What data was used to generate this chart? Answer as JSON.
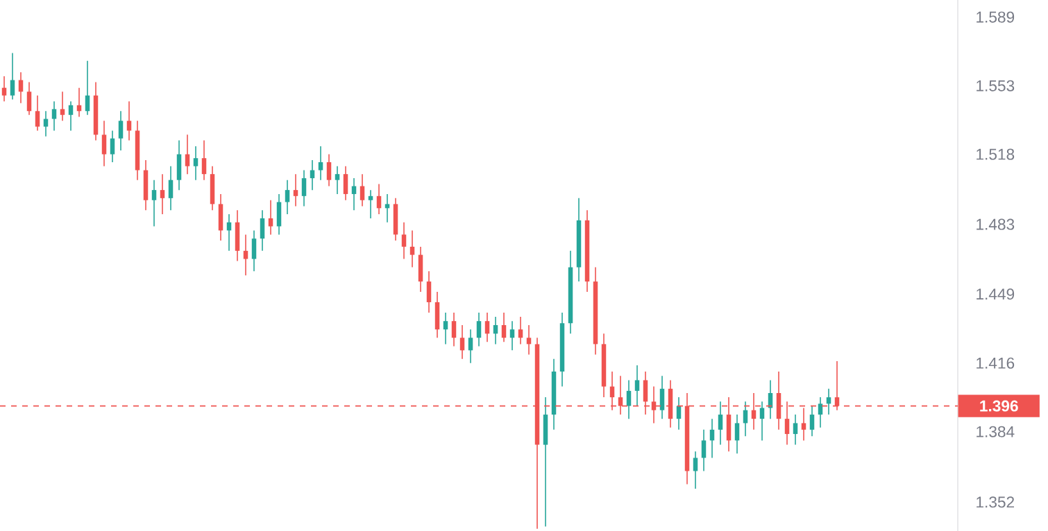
{
  "chart_data": {
    "type": "candlestick",
    "categories": [
      null,
      null,
      null,
      null,
      null,
      null,
      null,
      null,
      null,
      null,
      null,
      null,
      null,
      null,
      null,
      null,
      null,
      null,
      null,
      null,
      null,
      null,
      null,
      null,
      null,
      null,
      null,
      null,
      null,
      null,
      null,
      null,
      null,
      null,
      null,
      null,
      null,
      null,
      null,
      null,
      null,
      null,
      null,
      null,
      null,
      null,
      null,
      null,
      null,
      null,
      null,
      null,
      null,
      null,
      null,
      null,
      null,
      null,
      null,
      null,
      null,
      null,
      null,
      null,
      null,
      null,
      null,
      null,
      null,
      null,
      null,
      null,
      null,
      null,
      null,
      null,
      null,
      null,
      null,
      null,
      null,
      null,
      null,
      null,
      null,
      null,
      null,
      null,
      null,
      null,
      null,
      null,
      null,
      null,
      null,
      null,
      null,
      null,
      null,
      null,
      null,
      null,
      null,
      null,
      null,
      null,
      null,
      null,
      null,
      null,
      null,
      null,
      null,
      null,
      null
    ],
    "ohlc": [
      [
        1.552,
        1.558,
        1.545,
        1.548
      ],
      [
        1.548,
        1.57,
        1.546,
        1.556
      ],
      [
        1.556,
        1.56,
        1.544,
        1.55
      ],
      [
        1.55,
        1.555,
        1.538,
        1.54
      ],
      [
        1.54,
        1.548,
        1.53,
        1.532
      ],
      [
        1.532,
        1.54,
        1.527,
        1.536
      ],
      [
        1.536,
        1.545,
        1.53,
        1.541
      ],
      [
        1.541,
        1.55,
        1.535,
        1.538
      ],
      [
        1.538,
        1.545,
        1.53,
        1.543
      ],
      [
        1.543,
        1.552,
        1.537,
        1.54
      ],
      [
        1.54,
        1.566,
        1.538,
        1.548
      ],
      [
        1.548,
        1.555,
        1.525,
        1.528
      ],
      [
        1.528,
        1.535,
        1.512,
        1.518
      ],
      [
        1.518,
        1.53,
        1.514,
        1.526
      ],
      [
        1.526,
        1.54,
        1.52,
        1.535
      ],
      [
        1.535,
        1.545,
        1.525,
        1.53
      ],
      [
        1.53,
        1.535,
        1.505,
        1.51
      ],
      [
        1.51,
        1.515,
        1.49,
        1.495
      ],
      [
        1.495,
        1.505,
        1.482,
        1.5
      ],
      [
        1.5,
        1.508,
        1.488,
        1.496
      ],
      [
        1.496,
        1.512,
        1.49,
        1.505
      ],
      [
        1.505,
        1.525,
        1.5,
        1.518
      ],
      [
        1.518,
        1.528,
        1.508,
        1.512
      ],
      [
        1.512,
        1.522,
        1.505,
        1.516
      ],
      [
        1.516,
        1.525,
        1.505,
        1.508
      ],
      [
        1.508,
        1.512,
        1.49,
        1.493
      ],
      [
        1.493,
        1.498,
        1.475,
        1.48
      ],
      [
        1.48,
        1.488,
        1.47,
        1.484
      ],
      [
        1.484,
        1.49,
        1.465,
        1.47
      ],
      [
        1.47,
        1.478,
        1.458,
        1.466
      ],
      [
        1.466,
        1.48,
        1.46,
        1.476
      ],
      [
        1.476,
        1.49,
        1.47,
        1.486
      ],
      [
        1.486,
        1.495,
        1.478,
        1.482
      ],
      [
        1.482,
        1.498,
        1.478,
        1.494
      ],
      [
        1.494,
        1.505,
        1.488,
        1.5
      ],
      [
        1.5,
        1.508,
        1.492,
        1.497
      ],
      [
        1.497,
        1.51,
        1.492,
        1.506
      ],
      [
        1.506,
        1.515,
        1.5,
        1.51
      ],
      [
        1.51,
        1.522,
        1.505,
        1.514
      ],
      [
        1.514,
        1.518,
        1.502,
        1.505
      ],
      [
        1.505,
        1.512,
        1.498,
        1.508
      ],
      [
        1.508,
        1.512,
        1.495,
        1.498
      ],
      [
        1.498,
        1.506,
        1.49,
        1.502
      ],
      [
        1.502,
        1.508,
        1.492,
        1.495
      ],
      [
        1.495,
        1.5,
        1.486,
        1.497
      ],
      [
        1.497,
        1.503,
        1.488,
        1.491
      ],
      [
        1.491,
        1.498,
        1.484,
        1.493
      ],
      [
        1.493,
        1.496,
        1.475,
        1.478
      ],
      [
        1.478,
        1.484,
        1.466,
        1.472
      ],
      [
        1.472,
        1.48,
        1.462,
        1.468
      ],
      [
        1.468,
        1.472,
        1.45,
        1.455
      ],
      [
        1.455,
        1.46,
        1.44,
        1.445
      ],
      [
        1.445,
        1.45,
        1.428,
        1.432
      ],
      [
        1.432,
        1.44,
        1.425,
        1.436
      ],
      [
        1.436,
        1.44,
        1.424,
        1.428
      ],
      [
        1.428,
        1.434,
        1.418,
        1.422
      ],
      [
        1.422,
        1.432,
        1.416,
        1.428
      ],
      [
        1.428,
        1.44,
        1.424,
        1.436
      ],
      [
        1.436,
        1.44,
        1.426,
        1.43
      ],
      [
        1.43,
        1.438,
        1.425,
        1.434
      ],
      [
        1.434,
        1.44,
        1.426,
        1.428
      ],
      [
        1.428,
        1.436,
        1.422,
        1.432
      ],
      [
        1.432,
        1.438,
        1.425,
        1.428
      ],
      [
        1.428,
        1.434,
        1.42,
        1.425
      ],
      [
        1.425,
        1.428,
        1.34,
        1.378
      ],
      [
        1.378,
        1.4,
        1.341,
        1.392
      ],
      [
        1.392,
        1.418,
        1.385,
        1.412
      ],
      [
        1.412,
        1.44,
        1.405,
        1.435
      ],
      [
        1.435,
        1.47,
        1.43,
        1.462
      ],
      [
        1.462,
        1.496,
        1.455,
        1.485
      ],
      [
        1.485,
        1.49,
        1.45,
        1.455
      ],
      [
        1.455,
        1.462,
        1.42,
        1.425
      ],
      [
        1.425,
        1.43,
        1.4,
        1.405
      ],
      [
        1.405,
        1.412,
        1.394,
        1.4
      ],
      [
        1.4,
        1.41,
        1.392,
        1.396
      ],
      [
        1.396,
        1.408,
        1.39,
        1.403
      ],
      [
        1.403,
        1.415,
        1.396,
        1.408
      ],
      [
        1.408,
        1.412,
        1.392,
        1.398
      ],
      [
        1.398,
        1.405,
        1.388,
        1.394
      ],
      [
        1.394,
        1.41,
        1.39,
        1.404
      ],
      [
        1.404,
        1.408,
        1.386,
        1.39
      ],
      [
        1.39,
        1.4,
        1.385,
        1.396
      ],
      [
        1.396,
        1.402,
        1.36,
        1.366
      ],
      [
        1.366,
        1.375,
        1.358,
        1.372
      ],
      [
        1.372,
        1.385,
        1.366,
        1.38
      ],
      [
        1.38,
        1.39,
        1.372,
        1.385
      ],
      [
        1.385,
        1.398,
        1.378,
        1.392
      ],
      [
        1.392,
        1.4,
        1.375,
        1.38
      ],
      [
        1.38,
        1.392,
        1.374,
        1.388
      ],
      [
        1.388,
        1.398,
        1.382,
        1.394
      ],
      [
        1.394,
        1.402,
        1.385,
        1.39
      ],
      [
        1.39,
        1.398,
        1.38,
        1.395
      ],
      [
        1.395,
        1.408,
        1.39,
        1.402
      ],
      [
        1.402,
        1.412,
        1.385,
        1.39
      ],
      [
        1.39,
        1.398,
        1.378,
        1.383
      ],
      [
        1.383,
        1.392,
        1.378,
        1.388
      ],
      [
        1.388,
        1.395,
        1.38,
        1.385
      ],
      [
        1.385,
        1.396,
        1.382,
        1.392
      ],
      [
        1.392,
        1.4,
        1.386,
        1.397
      ],
      [
        1.397,
        1.404,
        1.392,
        1.4
      ],
      [
        1.4,
        1.417,
        1.394,
        1.396
      ],
      null,
      null,
      null,
      null,
      null,
      null,
      null,
      null,
      null,
      null,
      null,
      null,
      null,
      null
    ],
    "ylim": [
      1.339,
      1.598
    ],
    "yticks": [
      1.352,
      1.384,
      1.416,
      1.449,
      1.483,
      1.518,
      1.553,
      1.589
    ],
    "log": true,
    "tick_labels": "y",
    "ref_lines": [
      {
        "axis": "y",
        "value": 1.396,
        "label": "1.396",
        "color": "#ef5350",
        "line_style": "dashed"
      }
    ]
  }
}
